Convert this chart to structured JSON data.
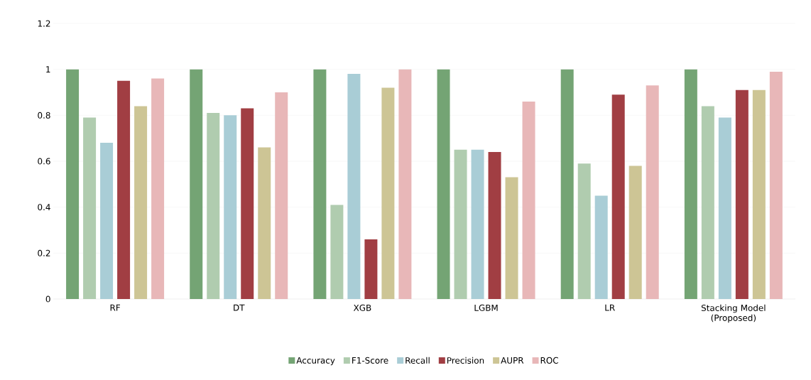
{
  "chart_data": {
    "type": "bar",
    "categories": [
      "RF",
      "DT",
      "XGB",
      "LGBM",
      "LR",
      "Stacking Model (Proposed)"
    ],
    "series": [
      {
        "name": "Accuracy",
        "color": "#74a474",
        "values": [
          1,
          1,
          1,
          1,
          1,
          1
        ]
      },
      {
        "name": "F1-Score",
        "color": "#b0ccaf",
        "values": [
          0.79,
          0.81,
          0.41,
          0.65,
          0.59,
          0.84
        ]
      },
      {
        "name": "Recall",
        "color": "#a9cdd6",
        "values": [
          0.68,
          0.8,
          0.98,
          0.65,
          0.45,
          0.79
        ]
      },
      {
        "name": "Precision",
        "color": "#a13e43",
        "values": [
          0.95,
          0.83,
          0.26,
          0.64,
          0.89,
          0.91
        ]
      },
      {
        "name": "AUPR",
        "color": "#cdc595",
        "values": [
          0.84,
          0.66,
          0.92,
          0.53,
          0.58,
          0.91
        ]
      },
      {
        "name": "ROC",
        "color": "#e8b7b8",
        "values": [
          0.96,
          0.9,
          1,
          0.86,
          0.93,
          0.99
        ]
      }
    ],
    "ylim": [
      0,
      1.2
    ],
    "yticks": [
      0,
      0.2,
      0.4,
      0.6,
      0.8,
      1,
      1.2
    ],
    "grid": "y",
    "legend": "bottom"
  }
}
